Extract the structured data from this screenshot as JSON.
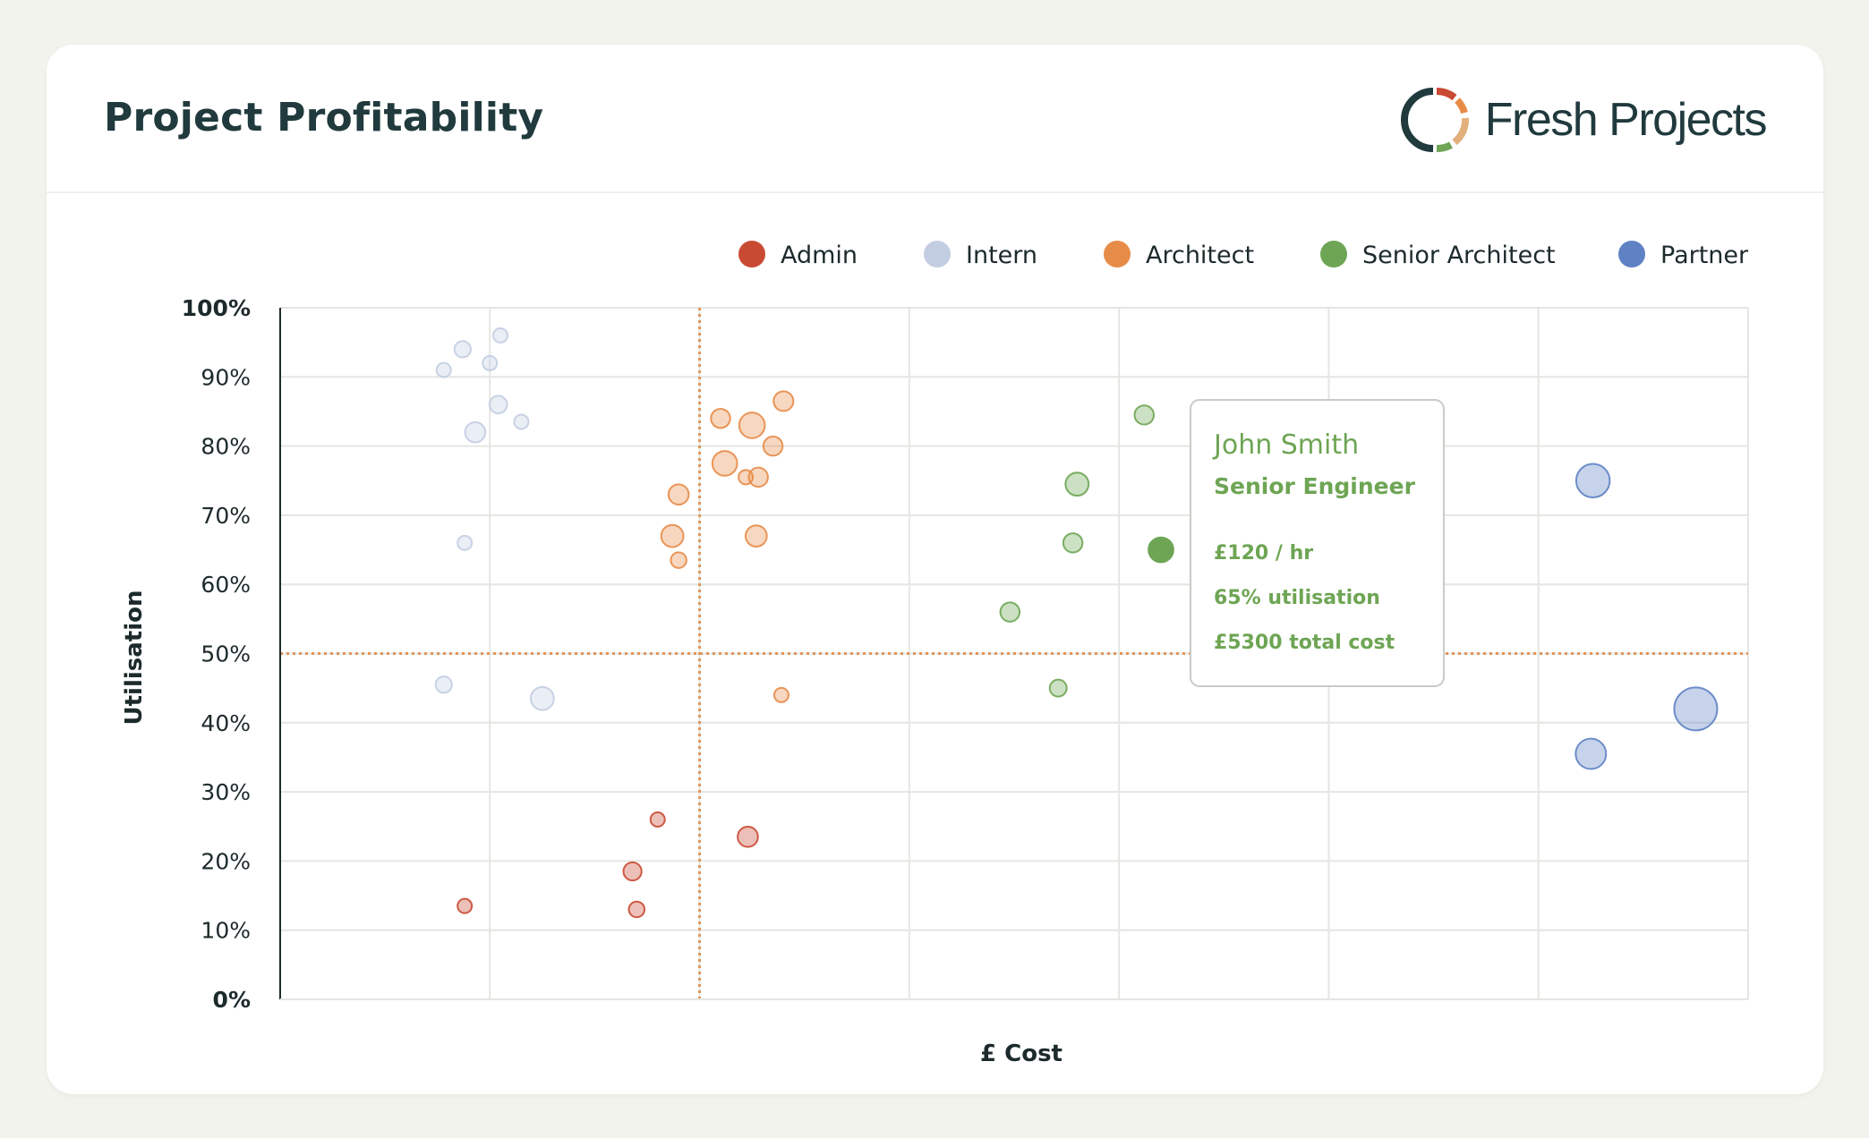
{
  "header": {
    "title": "Project Profitability",
    "brand": "Fresh Projects"
  },
  "colors": {
    "Admin": "#c94a33",
    "Intern": "#c3cde2",
    "Architect": "#e78b48",
    "Senior Architect": "#6ea554",
    "Partner": "#5f82c4",
    "reference_line": "#e2955a",
    "tooltip_text": "#6ea554"
  },
  "tooltip": {
    "name": "John Smith",
    "role": "Senior Engineer",
    "rate": "£120 / hr",
    "utilisation": "65% utilisation",
    "total_cost": "£5300 total cost"
  },
  "chart_data": {
    "type": "scatter",
    "title": "Project Profitability",
    "xlabel": "£ Cost",
    "ylabel": "Utilisation",
    "xlim": [
      0,
      7
    ],
    "ylim": [
      0,
      100
    ],
    "y_ticks": [
      0,
      10,
      20,
      30,
      40,
      50,
      60,
      70,
      80,
      90,
      100
    ],
    "y_tick_labels": [
      "0%",
      "10%",
      "20%",
      "30%",
      "40%",
      "50%",
      "60%",
      "70%",
      "80%",
      "90%",
      "100%"
    ],
    "x_tick_labels": [],
    "grid": true,
    "legend_position": "top-right",
    "reference_lines": {
      "x": 2,
      "y": 50
    },
    "highlighted_point": {
      "series": "Senior Architect",
      "x": 4.2,
      "y": 65
    },
    "series": [
      {
        "name": "Admin",
        "points": [
          {
            "x": 0.88,
            "y": 13.5,
            "size": 1
          },
          {
            "x": 1.68,
            "y": 18.5,
            "size": 1.6
          },
          {
            "x": 1.7,
            "y": 13.0,
            "size": 1.2
          },
          {
            "x": 1.8,
            "y": 26.0,
            "size": 1
          },
          {
            "x": 2.23,
            "y": 23.5,
            "size": 2
          }
        ]
      },
      {
        "name": "Intern",
        "points": [
          {
            "x": 0.78,
            "y": 91.0,
            "size": 1
          },
          {
            "x": 0.87,
            "y": 94.0,
            "size": 1.3
          },
          {
            "x": 1.0,
            "y": 92.0,
            "size": 1
          },
          {
            "x": 1.05,
            "y": 96.0,
            "size": 1
          },
          {
            "x": 1.04,
            "y": 86.0,
            "size": 1.5
          },
          {
            "x": 0.93,
            "y": 82.0,
            "size": 2
          },
          {
            "x": 1.15,
            "y": 83.5,
            "size": 1
          },
          {
            "x": 0.88,
            "y": 66.0,
            "size": 1
          },
          {
            "x": 0.78,
            "y": 45.5,
            "size": 1.3
          },
          {
            "x": 1.25,
            "y": 43.5,
            "size": 2.6
          }
        ]
      },
      {
        "name": "Architect",
        "points": [
          {
            "x": 2.1,
            "y": 84.0,
            "size": 1.8
          },
          {
            "x": 2.25,
            "y": 83.0,
            "size": 3.2
          },
          {
            "x": 2.4,
            "y": 86.5,
            "size": 1.9
          },
          {
            "x": 2.35,
            "y": 80.0,
            "size": 1.8
          },
          {
            "x": 2.12,
            "y": 77.5,
            "size": 3.0
          },
          {
            "x": 2.22,
            "y": 75.5,
            "size": 1
          },
          {
            "x": 2.28,
            "y": 75.5,
            "size": 1.8
          },
          {
            "x": 1.9,
            "y": 73.0,
            "size": 2
          },
          {
            "x": 1.87,
            "y": 67.0,
            "size": 2.4
          },
          {
            "x": 1.9,
            "y": 63.5,
            "size": 1.2
          },
          {
            "x": 2.27,
            "y": 67.0,
            "size": 2.2
          },
          {
            "x": 2.39,
            "y": 44.0,
            "size": 1
          }
        ]
      },
      {
        "name": "Senior Architect",
        "points": [
          {
            "x": 4.12,
            "y": 84.5,
            "size": 1.8
          },
          {
            "x": 3.8,
            "y": 74.5,
            "size": 2.6
          },
          {
            "x": 3.78,
            "y": 66.0,
            "size": 1.8
          },
          {
            "x": 4.2,
            "y": 65.0,
            "size": 3.0
          },
          {
            "x": 3.48,
            "y": 56.0,
            "size": 1.8
          },
          {
            "x": 3.71,
            "y": 45.0,
            "size": 1.4
          }
        ]
      },
      {
        "name": "Partner",
        "points": [
          {
            "x": 6.26,
            "y": 75.0,
            "size": 5.5
          },
          {
            "x": 6.25,
            "y": 35.5,
            "size": 4.5
          },
          {
            "x": 6.75,
            "y": 42.0,
            "size": 9.0
          }
        ]
      }
    ]
  }
}
